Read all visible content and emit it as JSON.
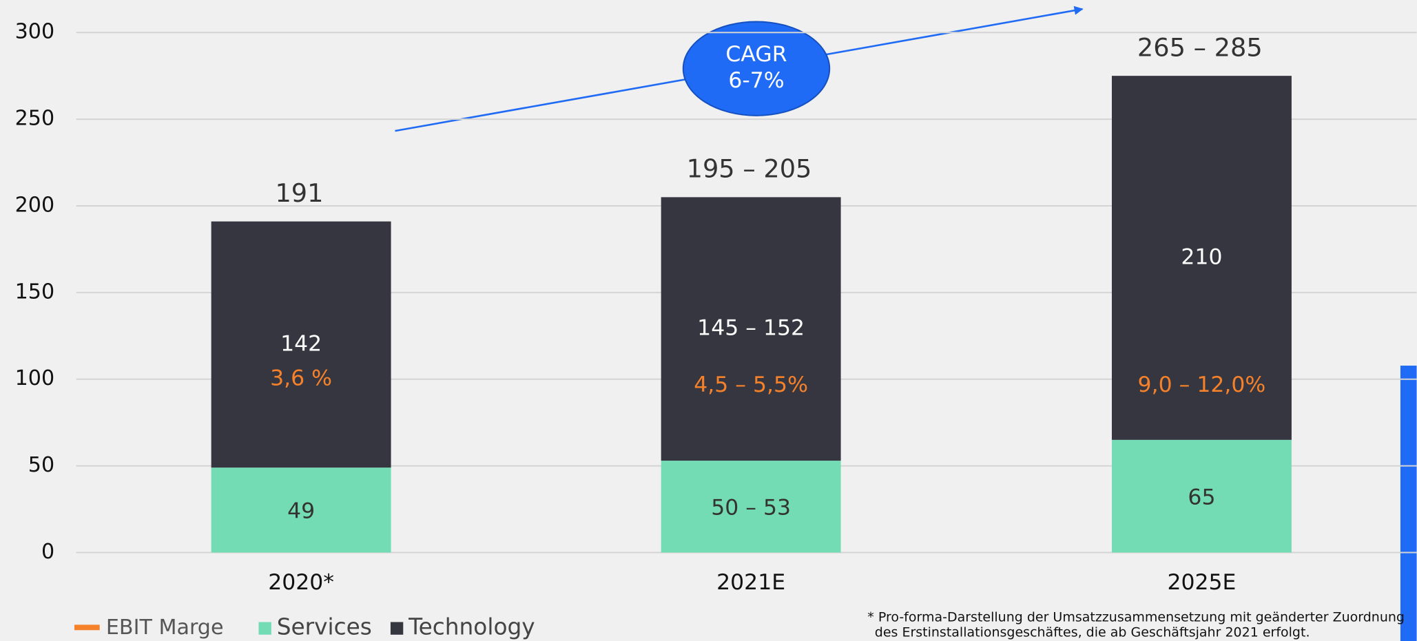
{
  "chart_data": {
    "type": "stacked_bar",
    "categories": [
      "2020*",
      "2021E",
      "2025E"
    ],
    "series": [
      {
        "name": "Services",
        "color": "#74dcb4",
        "values": [
          49,
          53,
          65
        ],
        "value_labels": [
          "49",
          "50 – 53",
          "65"
        ]
      },
      {
        "name": "Technology",
        "color": "#363640",
        "values": [
          142,
          152,
          210
        ],
        "value_labels": [
          "142",
          "145 – 152",
          "210"
        ]
      }
    ],
    "ebit_margin": {
      "name": "EBIT Marge",
      "color": "#f5822a",
      "labels": [
        "3,6 %",
        "4,5 – 5,5%",
        "9,0 – 12,0%"
      ]
    },
    "total_labels": [
      "191",
      "195 – 205",
      "265 – 285"
    ],
    "ylim": [
      0,
      300
    ],
    "yticks": [
      0,
      50,
      100,
      150,
      200,
      250,
      300
    ],
    "grid": true,
    "annotation": {
      "lines": [
        "CAGR",
        "6-7%"
      ],
      "color": "#1f6bf5"
    },
    "footnote": [
      "* Pro-forma-Darstellung der Umsatzzusammensetzung mit geänderter Zuordnung",
      "des Erstinstallationsgeschäftes, die ab Geschäftsjahr 2021 erfolgt."
    ]
  }
}
